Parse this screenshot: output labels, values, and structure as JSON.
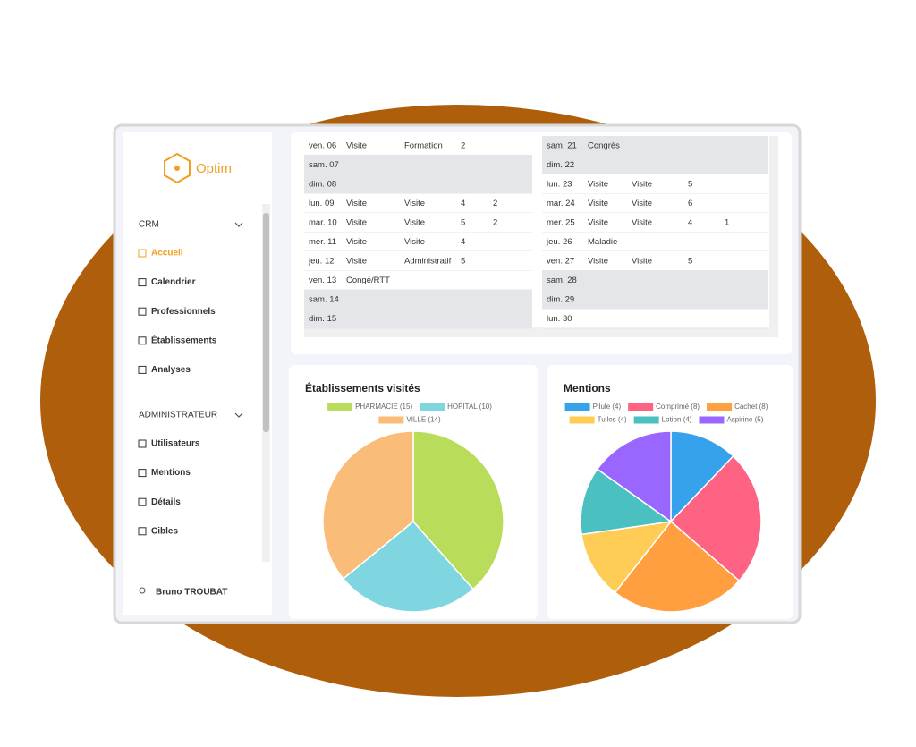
{
  "sidebar": {
    "brand": "Optim",
    "sections": [
      {
        "title": "CRM",
        "items": [
          "Accueil",
          "Calendrier",
          "Professionnels",
          "Établissements",
          "Analyses"
        ]
      },
      {
        "title": "ADMINISTRATEUR",
        "items": [
          "Utilisateurs",
          "Mentions",
          "Détails",
          "Cibles"
        ]
      }
    ],
    "user": "Bruno TROUBAT"
  },
  "calendar": {
    "left": [
      {
        "cells": [
          "ven. 06",
          "Visite",
          "Formation",
          2
        ]
      },
      {
        "cells": [
          "sam. 07"
        ],
        "fill": "#e4e6ea"
      },
      {
        "cells": [
          "dim. 08"
        ],
        "fill": "#e4e6ea"
      },
      {
        "cells": [
          "lun. 09",
          "Visite",
          "Visite",
          4,
          2
        ]
      },
      {
        "cells": [
          "mar. 10",
          "Visite",
          "Visite",
          5,
          2
        ]
      },
      {
        "cells": [
          "mer. 11",
          "Visite",
          "Visite",
          4
        ]
      },
      {
        "cells": [
          "jeu. 12",
          "Visite",
          "Administratif",
          5
        ]
      },
      {
        "cells": [
          "ven. 13",
          "Congé/RTT"
        ]
      },
      {
        "cells": [
          "sam. 14"
        ],
        "fill": "#e4e6ea"
      },
      {
        "cells": [
          "dim. 15"
        ],
        "fill": "#e4e6ea"
      }
    ],
    "right": [
      {
        "cells": [
          "sam. 21",
          "Congrès"
        ],
        "fill": "#e4e6ea"
      },
      {
        "cells": [
          "dim. 22"
        ],
        "fill": "#e4e6ea"
      },
      {
        "cells": [
          "lun. 23",
          "Visite",
          "Visite",
          5
        ]
      },
      {
        "cells": [
          "mar. 24",
          "Visite",
          "Visite",
          6
        ]
      },
      {
        "cells": [
          "mer. 25",
          "Visite",
          "Visite",
          4,
          1
        ]
      },
      {
        "cells": [
          "jeu. 26",
          "Maladie"
        ]
      },
      {
        "cells": [
          "ven. 27",
          "Visite",
          "Visite",
          5
        ]
      },
      {
        "cells": [
          "sam. 28"
        ],
        "fill": "#e4e6ea"
      },
      {
        "cells": [
          "dim. 29"
        ],
        "fill": "#e4e6ea"
      },
      {
        "cells": [
          "lun. 30"
        ]
      }
    ]
  },
  "chart_data": [
    {
      "type": "pie",
      "title": "Établissements visités",
      "categories": [
        "PHARMACIE (15)",
        "HOPITAL (10)",
        "VILLE (14)"
      ],
      "values": [
        15,
        10,
        14
      ],
      "colors": [
        "#b9dc5a",
        "#7fd6e0",
        "#f9bc79"
      ]
    },
    {
      "type": "pie",
      "title": "Mentions",
      "categories": [
        "Pilule (4)",
        "Comprimé (8)",
        "Cachet (8)",
        "Tulles (4)",
        "Lotion (4)",
        "Aspirine (5)"
      ],
      "values": [
        4,
        8,
        8,
        4,
        4,
        5
      ],
      "colors": [
        "#36a2eb",
        "#ff6384",
        "#ff9f40",
        "#ffcd56",
        "#4bc0c0",
        "#9966ff"
      ]
    }
  ]
}
